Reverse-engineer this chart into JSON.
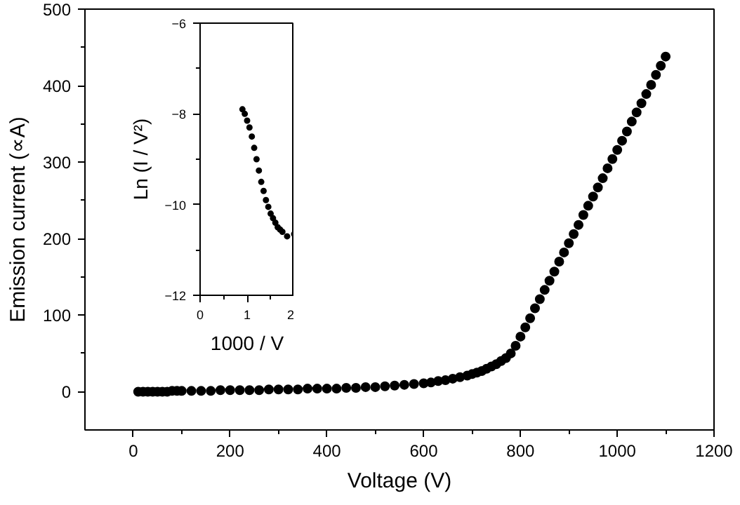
{
  "chart_data": [
    {
      "type": "scatter",
      "xlabel": "Voltage (V)",
      "ylabel": "Emission current (∝A)",
      "xlim": [
        -100,
        1200
      ],
      "ylim": [
        -50,
        500
      ],
      "xticks": [
        0,
        200,
        400,
        600,
        800,
        1000,
        1200
      ],
      "yticks": [
        0,
        100,
        200,
        300,
        400,
        500
      ],
      "grid": false,
      "marker": "circle",
      "series": [
        {
          "color": "#000000",
          "x": [
            10,
            20,
            30,
            40,
            50,
            60,
            70,
            80,
            90,
            100,
            120,
            140,
            160,
            180,
            200,
            220,
            240,
            260,
            280,
            300,
            320,
            340,
            360,
            380,
            400,
            420,
            440,
            460,
            480,
            500,
            520,
            540,
            560,
            580,
            600,
            615,
            630,
            645,
            660,
            675,
            690,
            700,
            710,
            720,
            730,
            740,
            750,
            760,
            770,
            780,
            790,
            800,
            810,
            820,
            830,
            840,
            850,
            860,
            870,
            880,
            890,
            900,
            910,
            920,
            930,
            940,
            950,
            960,
            970,
            980,
            990,
            1000,
            1010,
            1020,
            1030,
            1040,
            1050,
            1060,
            1070,
            1080,
            1090,
            1100
          ],
          "values": [
            0,
            0,
            0,
            0,
            0,
            0,
            0,
            1,
            1,
            1,
            1,
            1,
            1,
            2,
            2,
            2,
            2,
            2,
            3,
            3,
            3,
            3,
            4,
            4,
            4,
            4,
            5,
            5,
            6,
            6,
            7,
            8,
            9,
            10,
            11,
            12,
            14,
            15,
            17,
            19,
            21,
            23,
            25,
            27,
            30,
            33,
            36,
            40,
            44,
            50,
            60,
            72,
            84,
            96,
            109,
            121,
            133,
            145,
            157,
            170,
            182,
            194,
            206,
            218,
            231,
            243,
            255,
            267,
            279,
            292,
            304,
            316,
            328,
            340,
            353,
            365,
            377,
            389,
            401,
            414,
            426,
            438
          ]
        }
      ]
    },
    {
      "type": "scatter",
      "xlabel": "1000 / V",
      "ylabel": "Ln (I / V²)",
      "xlim": [
        0,
        2
      ],
      "ylim": [
        -12,
        -6
      ],
      "xticks": [
        0,
        1,
        2
      ],
      "yticks": [
        -12,
        -10,
        -8,
        -6
      ],
      "grid": false,
      "marker": "circle",
      "series": [
        {
          "color": "#000000",
          "x": [
            0.9,
            0.95,
            1.0,
            1.05,
            1.1,
            1.15,
            1.2,
            1.25,
            1.3,
            1.35,
            1.4,
            1.45,
            1.5,
            1.55,
            1.6,
            1.65,
            1.7,
            1.75,
            1.85,
            2.0
          ],
          "values": [
            -7.9,
            -8.0,
            -8.15,
            -8.3,
            -8.5,
            -8.75,
            -9.0,
            -9.25,
            -9.5,
            -9.7,
            -9.9,
            -10.05,
            -10.2,
            -10.3,
            -10.4,
            -10.5,
            -10.55,
            -10.6,
            -10.7,
            -10.65
          ]
        }
      ]
    }
  ]
}
